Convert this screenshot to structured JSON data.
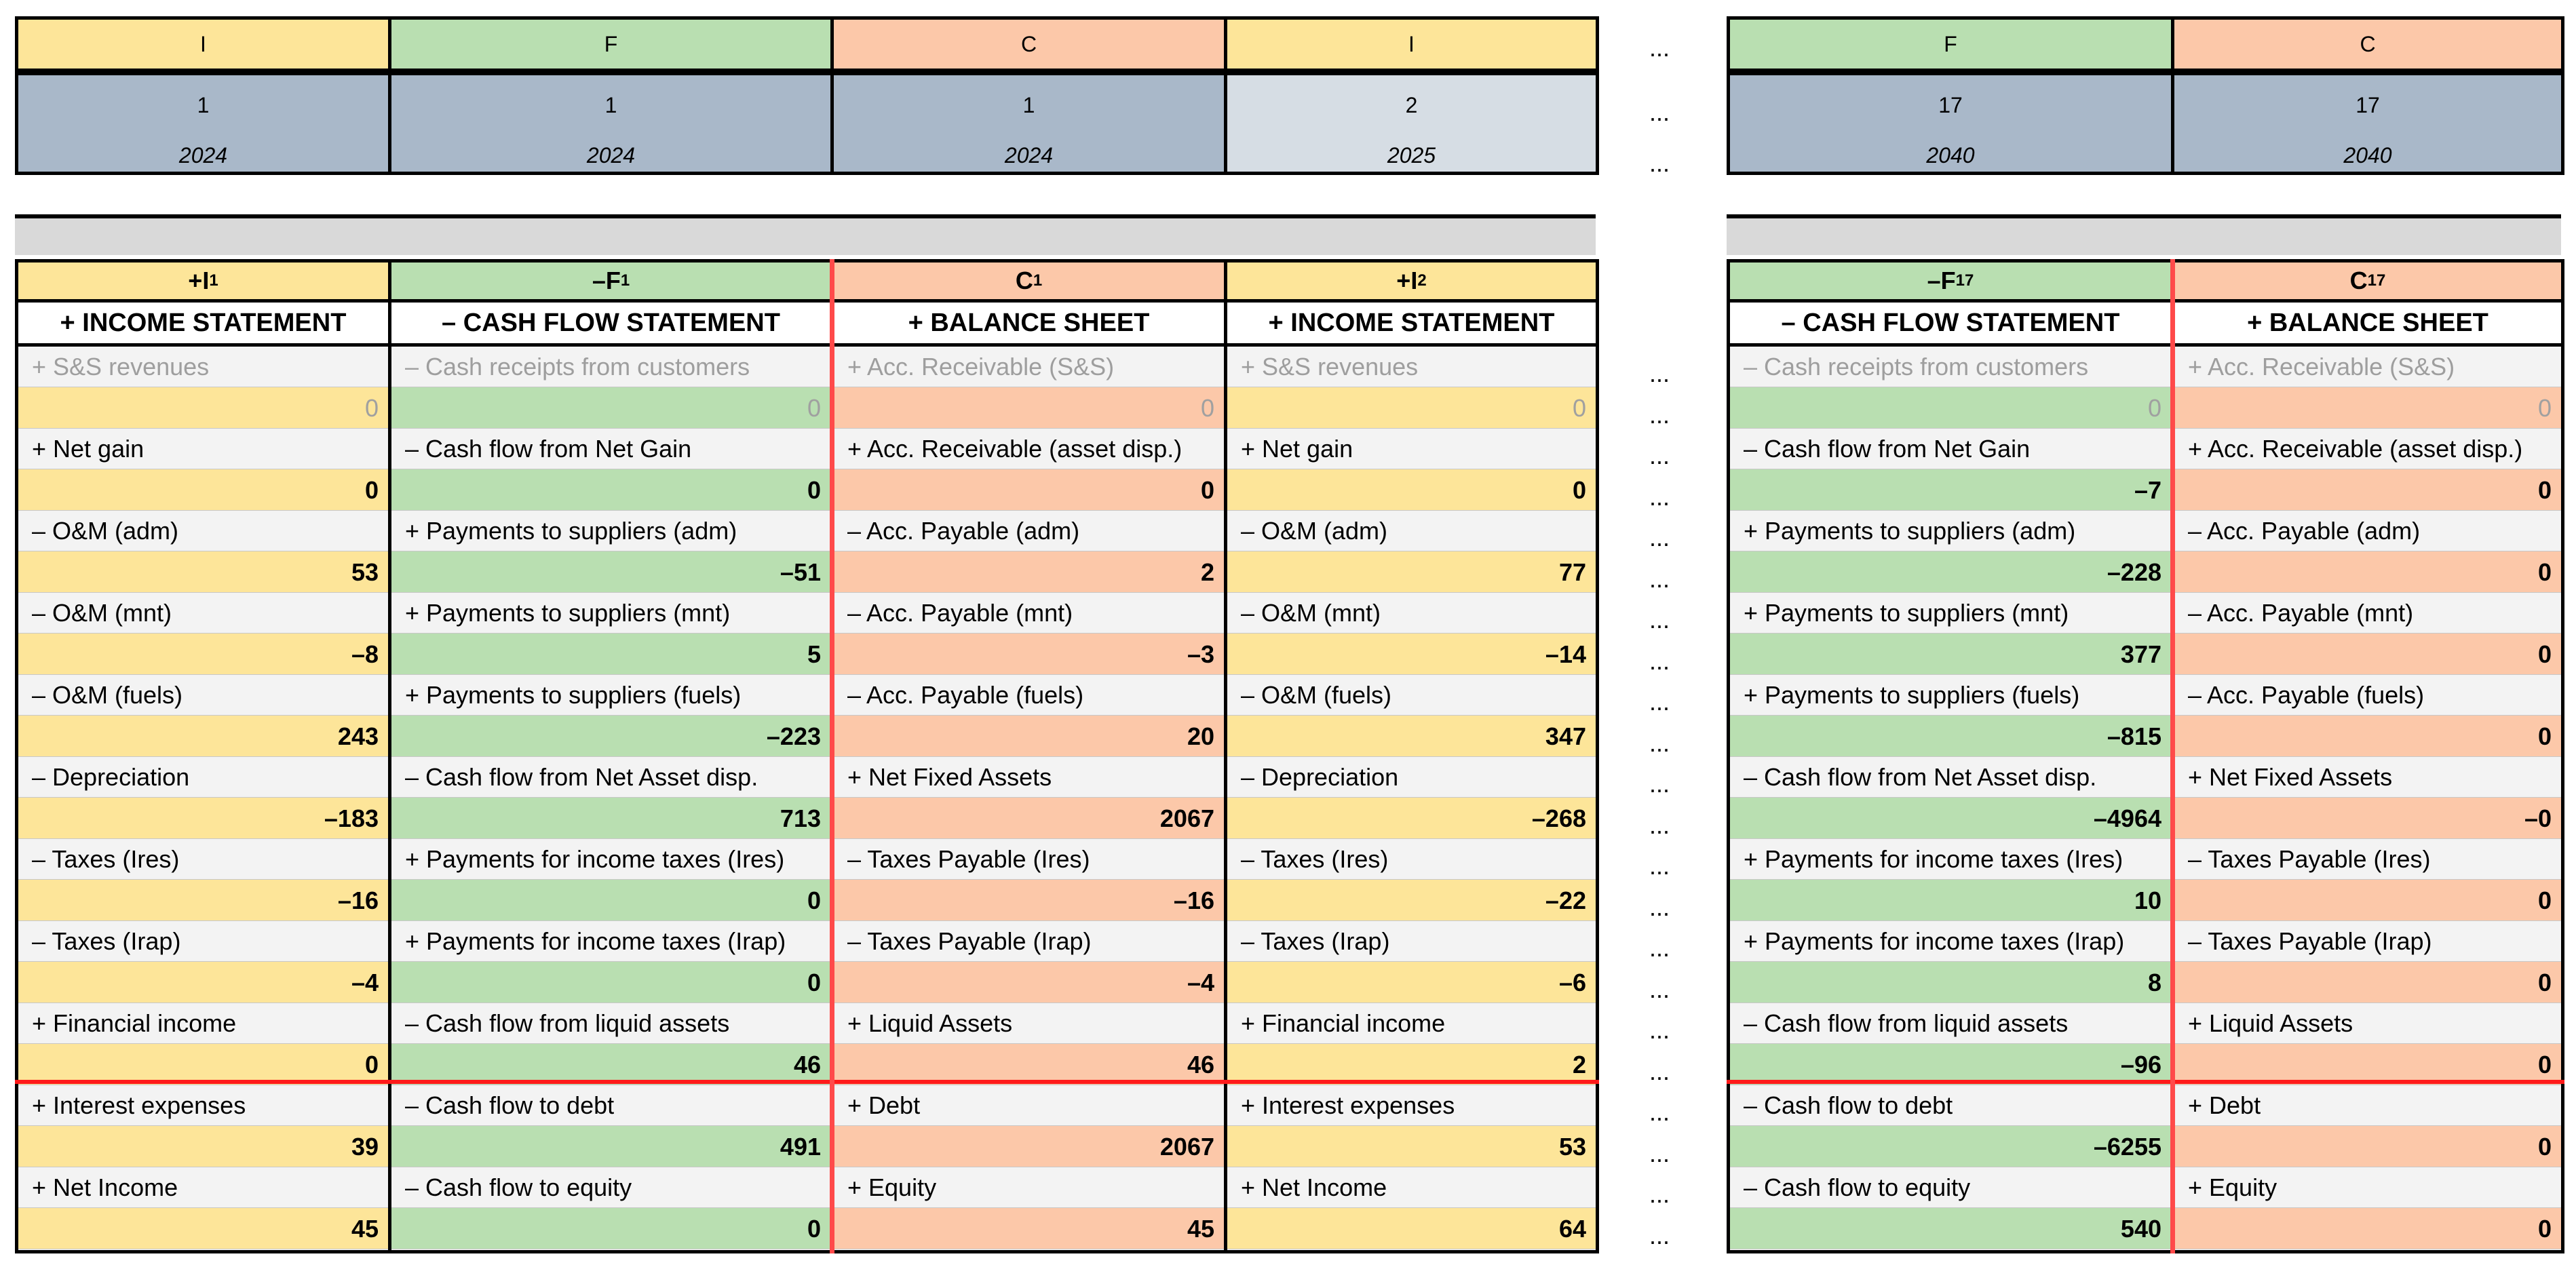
{
  "ellipsis": "...",
  "left_columns": [
    {
      "type": "I",
      "period": "1",
      "year": "2024",
      "period_shade": "dark",
      "symbol_base": "+I",
      "symbol_sub": "1",
      "title": "+ INCOME STATEMENT",
      "rows": [
        {
          "label": "+ S&S revenues",
          "value": "0",
          "muted": true
        },
        {
          "label": "+ Net gain",
          "value": "0"
        },
        {
          "label": "– O&M (adm)",
          "value": "53"
        },
        {
          "label": "– O&M (mnt)",
          "value": "–8"
        },
        {
          "label": "– O&M (fuels)",
          "value": "243"
        },
        {
          "label": "– Depreciation",
          "value": "–183"
        },
        {
          "label": "– Taxes (Ires)",
          "value": "–16"
        },
        {
          "label": "– Taxes (Irap)",
          "value": "–4"
        },
        {
          "label": "+ Financial income",
          "value": "0"
        },
        {
          "label": "+ Interest expenses",
          "value": "39"
        },
        {
          "label": "+ Net Income",
          "value": "45"
        }
      ]
    },
    {
      "type": "F",
      "period": "1",
      "year": "2024",
      "period_shade": "dark",
      "symbol_base": "–F",
      "symbol_sub": "1",
      "title": "– CASH FLOW STATEMENT",
      "rows": [
        {
          "label": "– Cash receipts from customers",
          "value": "0",
          "muted": true
        },
        {
          "label": "– Cash flow from Net Gain",
          "value": "0"
        },
        {
          "label": "+ Payments to suppliers (adm)",
          "value": "–51"
        },
        {
          "label": "+ Payments to suppliers (mnt)",
          "value": "5"
        },
        {
          "label": "+ Payments to suppliers (fuels)",
          "value": "–223"
        },
        {
          "label": "– Cash flow from Net Asset disp.",
          "value": "713"
        },
        {
          "label": "+ Payments for income taxes (Ires)",
          "value": "0"
        },
        {
          "label": "+ Payments for income taxes (Irap)",
          "value": "0"
        },
        {
          "label": "– Cash flow from liquid assets",
          "value": "46"
        },
        {
          "label": "– Cash flow to debt",
          "value": "491"
        },
        {
          "label": "– Cash flow to equity",
          "value": "0"
        }
      ]
    },
    {
      "type": "C",
      "period": "1",
      "year": "2024",
      "period_shade": "dark",
      "symbol_base": "C",
      "symbol_sub": "1",
      "title": "+ BALANCE SHEET",
      "rows": [
        {
          "label": "+ Acc. Receivable (S&S)",
          "value": "0",
          "muted": true
        },
        {
          "label": "+ Acc. Receivable (asset disp.)",
          "value": "0"
        },
        {
          "label": "– Acc. Payable (adm)",
          "value": "2"
        },
        {
          "label": "– Acc. Payable (mnt)",
          "value": "–3"
        },
        {
          "label": "– Acc. Payable (fuels)",
          "value": "20"
        },
        {
          "label": "+ Net Fixed Assets",
          "value": "2067"
        },
        {
          "label": "– Taxes Payable (Ires)",
          "value": "–16"
        },
        {
          "label": "– Taxes Payable (Irap)",
          "value": "–4"
        },
        {
          "label": "+ Liquid Assets",
          "value": "46"
        },
        {
          "label": "+ Debt",
          "value": "2067"
        },
        {
          "label": "+ Equity",
          "value": "45"
        }
      ]
    },
    {
      "type": "I",
      "period": "2",
      "year": "2025",
      "period_shade": "light",
      "symbol_base": "+I",
      "symbol_sub": "2",
      "title": "+ INCOME STATEMENT",
      "rows": [
        {
          "label": "+ S&S revenues",
          "value": "0",
          "muted": true
        },
        {
          "label": "+ Net gain",
          "value": "0"
        },
        {
          "label": "– O&M (adm)",
          "value": "77"
        },
        {
          "label": "– O&M (mnt)",
          "value": "–14"
        },
        {
          "label": "– O&M (fuels)",
          "value": "347"
        },
        {
          "label": "– Depreciation",
          "value": "–268"
        },
        {
          "label": "– Taxes (Ires)",
          "value": "–22"
        },
        {
          "label": "– Taxes (Irap)",
          "value": "–6"
        },
        {
          "label": "+ Financial income",
          "value": "2"
        },
        {
          "label": "+ Interest expenses",
          "value": "53"
        },
        {
          "label": "+ Net Income",
          "value": "64"
        }
      ]
    }
  ],
  "right_columns": [
    {
      "type": "F",
      "period": "17",
      "year": "2040",
      "period_shade": "dark",
      "symbol_base": "–F",
      "symbol_sub": "17",
      "title": "– CASH FLOW STATEMENT",
      "rows": [
        {
          "label": "– Cash receipts from customers",
          "value": "0",
          "muted": true
        },
        {
          "label": "– Cash flow from Net Gain",
          "value": "–7"
        },
        {
          "label": "+ Payments to suppliers (adm)",
          "value": "–228"
        },
        {
          "label": "+ Payments to suppliers (mnt)",
          "value": "377"
        },
        {
          "label": "+ Payments to suppliers (fuels)",
          "value": "–815"
        },
        {
          "label": "– Cash flow from Net Asset disp.",
          "value": "–4964"
        },
        {
          "label": "+ Payments for income taxes (Ires)",
          "value": "10"
        },
        {
          "label": "+ Payments for income taxes (Irap)",
          "value": "8"
        },
        {
          "label": "– Cash flow from liquid assets",
          "value": "–96"
        },
        {
          "label": "– Cash flow to debt",
          "value": "–6255"
        },
        {
          "label": "– Cash flow to equity",
          "value": "540"
        }
      ]
    },
    {
      "type": "C",
      "period": "17",
      "year": "2040",
      "period_shade": "dark",
      "symbol_base": "C",
      "symbol_sub": "17",
      "title": "+ BALANCE SHEET",
      "rows": [
        {
          "label": "+ Acc. Receivable (S&S)",
          "value": "0",
          "muted": true
        },
        {
          "label": "+ Acc. Receivable (asset disp.)",
          "value": "0"
        },
        {
          "label": "– Acc. Payable (adm)",
          "value": "0"
        },
        {
          "label": "– Acc. Payable (mnt)",
          "value": "0"
        },
        {
          "label": "– Acc. Payable (fuels)",
          "value": "0"
        },
        {
          "label": "+ Net Fixed Assets",
          "value": "–0"
        },
        {
          "label": "– Taxes Payable (Ires)",
          "value": "0"
        },
        {
          "label": "– Taxes Payable (Irap)",
          "value": "0"
        },
        {
          "label": "+ Liquid Assets",
          "value": "0"
        },
        {
          "label": "+ Debt",
          "value": "0"
        },
        {
          "label": "+ Equity",
          "value": "0"
        }
      ]
    }
  ],
  "colors": {
    "income": "#fde599",
    "cashflow": "#b9dfb1",
    "balance": "#fcc8a9",
    "period_dark": "#a9b8c9",
    "period_light": "#d6dde4",
    "divider_red": "#ff1a1a"
  }
}
